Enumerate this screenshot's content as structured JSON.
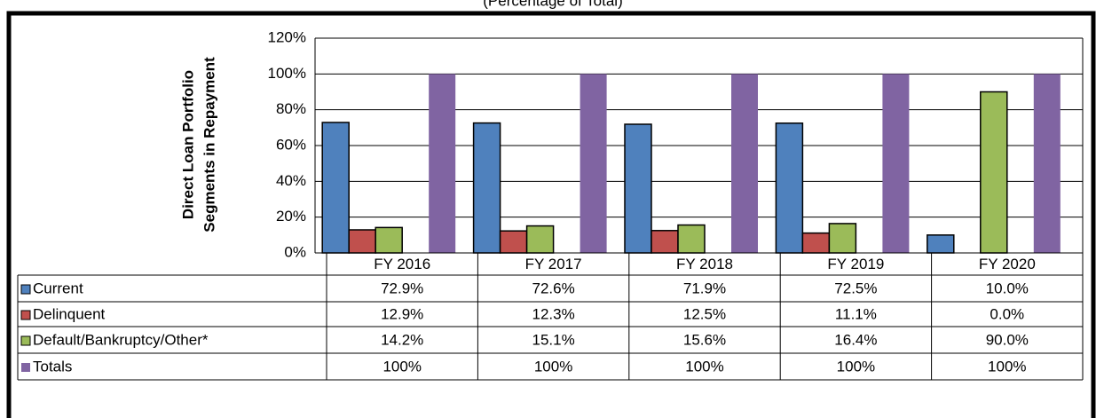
{
  "chart_data": {
    "type": "bar",
    "title": "(Percentage of Total)",
    "ylabel": [
      "Direct Loan Portfolio",
      "Segments in Repayment"
    ],
    "categories": [
      "FY 2016",
      "FY 2017",
      "FY 2018",
      "FY 2019",
      "FY 2020"
    ],
    "series": [
      {
        "name": "Current",
        "color": "#4f81bd",
        "values": [
          72.9,
          72.6,
          71.9,
          72.5,
          10.0
        ],
        "value_labels": [
          "72.9%",
          "72.6%",
          "71.9%",
          "72.5%",
          "10.0%"
        ]
      },
      {
        "name": "Delinquent",
        "color": "#c0504d",
        "values": [
          12.9,
          12.3,
          12.5,
          11.1,
          0.0
        ],
        "value_labels": [
          "12.9%",
          "12.3%",
          "12.5%",
          "11.1%",
          "0.0%"
        ]
      },
      {
        "name": "Default/Bankruptcy/Other*",
        "color": "#9bbb59",
        "values": [
          14.2,
          15.1,
          15.6,
          16.4,
          90.0
        ],
        "value_labels": [
          "14.2%",
          "15.1%",
          "15.6%",
          "16.4%",
          "90.0%"
        ]
      },
      {
        "name": "Totals",
        "color": "#8064a2",
        "values": [
          100,
          100,
          100,
          100,
          100
        ],
        "value_labels": [
          "100%",
          "100%",
          "100%",
          "100%",
          "100%"
        ]
      }
    ],
    "ylim": [
      0,
      120
    ],
    "yticks": [
      {
        "value": 0,
        "label": "0%"
      },
      {
        "value": 20,
        "label": "20%"
      },
      {
        "value": 40,
        "label": "40%"
      },
      {
        "value": 60,
        "label": "60%"
      },
      {
        "value": 80,
        "label": "80%"
      },
      {
        "value": 100,
        "label": "100%"
      },
      {
        "value": 120,
        "label": "120%"
      }
    ],
    "grid": true
  }
}
